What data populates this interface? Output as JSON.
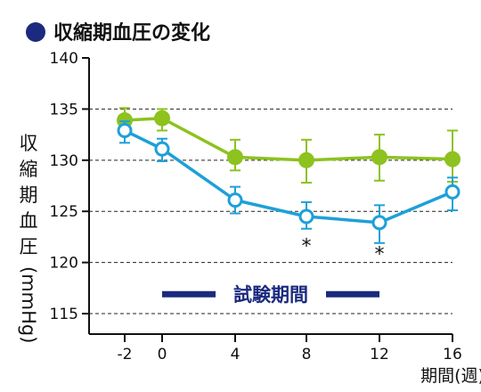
{
  "chart_data": {
    "type": "line",
    "title": "収縮期血圧の変化",
    "ylabel": "収縮期血圧(mmHg)",
    "xlabel": "期間(週)",
    "x": [
      -2,
      0,
      4,
      8,
      12,
      16
    ],
    "x_ticks": [
      "-2",
      "0",
      "4",
      "8",
      "12",
      "16"
    ],
    "ylim": [
      113,
      140
    ],
    "y_ticks": [
      "115",
      "120",
      "125",
      "130",
      "135",
      "140"
    ],
    "y_tick_values": [
      115,
      120,
      125,
      130,
      135,
      140
    ],
    "dashed_gridlines": [
      115,
      120,
      125,
      130,
      135
    ],
    "series": [
      {
        "color": "#8dc21f",
        "marker": "filled-circle",
        "values": [
          133.9,
          134.1,
          130.3,
          130.0,
          130.3,
          130.1
        ],
        "err_low": [
          0.9,
          1.2,
          1.3,
          2.2,
          2.3,
          2.2
        ],
        "err_high": [
          1.2,
          0.9,
          1.7,
          2.0,
          2.2,
          2.8
        ]
      },
      {
        "color": "#1ea0d8",
        "marker": "open-circle",
        "values": [
          132.9,
          131.1,
          126.1,
          124.5,
          123.9,
          126.9
        ],
        "err_low": [
          1.2,
          1.2,
          1.3,
          1.2,
          2.0,
          1.8
        ],
        "err_high": [
          0.9,
          1.0,
          1.3,
          1.4,
          1.7,
          1.4
        ]
      }
    ],
    "annotations": [
      {
        "text": "*",
        "x": 8,
        "y": 122.2
      },
      {
        "text": "*",
        "x": 12,
        "y": 121.4
      }
    ],
    "period_band": {
      "label": "試験期間",
      "x_start": 0,
      "x_end": 12,
      "y": 116.9,
      "color": "#1b2a7e"
    },
    "title_bullet_color": "#1b2a7e",
    "legend": "none",
    "grid": "horizontal-dashed"
  }
}
